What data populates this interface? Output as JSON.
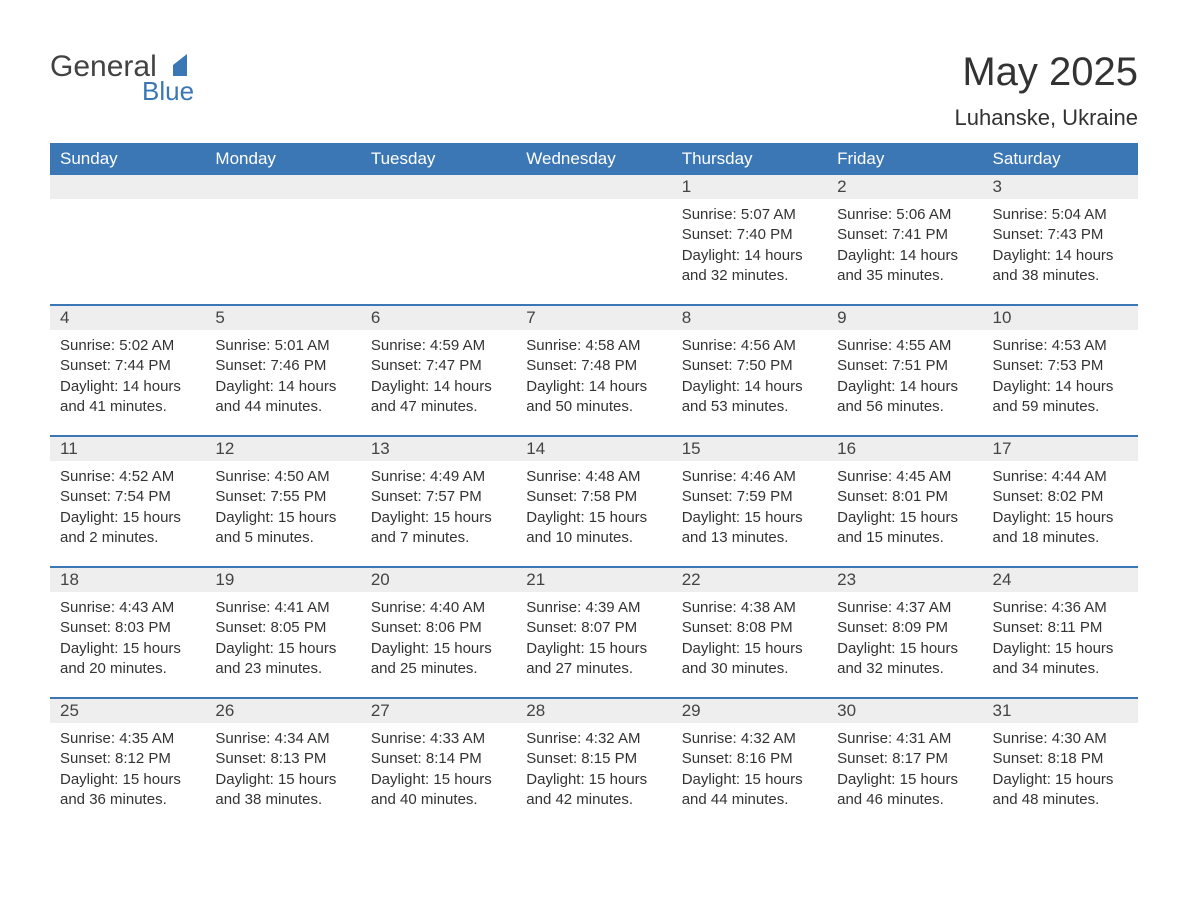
{
  "logo": {
    "text1": "General",
    "text2": "Blue",
    "iconColor": "#3b76b5",
    "text1Color": "#424242"
  },
  "title": "May 2025",
  "location": "Luhanske, Ukraine",
  "colors": {
    "headerBg": "#3b76b5",
    "headerText": "#ffffff",
    "dayStripBg": "#eeeeee",
    "rowBorder": "#3b76b5",
    "bodyText": "#333333"
  },
  "dayHeaders": [
    "Sunday",
    "Monday",
    "Tuesday",
    "Wednesday",
    "Thursday",
    "Friday",
    "Saturday"
  ],
  "weeks": [
    [
      null,
      null,
      null,
      null,
      {
        "n": "1",
        "sunrise": "5:07 AM",
        "sunset": "7:40 PM",
        "daylight": "14 hours and 32 minutes."
      },
      {
        "n": "2",
        "sunrise": "5:06 AM",
        "sunset": "7:41 PM",
        "daylight": "14 hours and 35 minutes."
      },
      {
        "n": "3",
        "sunrise": "5:04 AM",
        "sunset": "7:43 PM",
        "daylight": "14 hours and 38 minutes."
      }
    ],
    [
      {
        "n": "4",
        "sunrise": "5:02 AM",
        "sunset": "7:44 PM",
        "daylight": "14 hours and 41 minutes."
      },
      {
        "n": "5",
        "sunrise": "5:01 AM",
        "sunset": "7:46 PM",
        "daylight": "14 hours and 44 minutes."
      },
      {
        "n": "6",
        "sunrise": "4:59 AM",
        "sunset": "7:47 PM",
        "daylight": "14 hours and 47 minutes."
      },
      {
        "n": "7",
        "sunrise": "4:58 AM",
        "sunset": "7:48 PM",
        "daylight": "14 hours and 50 minutes."
      },
      {
        "n": "8",
        "sunrise": "4:56 AM",
        "sunset": "7:50 PM",
        "daylight": "14 hours and 53 minutes."
      },
      {
        "n": "9",
        "sunrise": "4:55 AM",
        "sunset": "7:51 PM",
        "daylight": "14 hours and 56 minutes."
      },
      {
        "n": "10",
        "sunrise": "4:53 AM",
        "sunset": "7:53 PM",
        "daylight": "14 hours and 59 minutes."
      }
    ],
    [
      {
        "n": "11",
        "sunrise": "4:52 AM",
        "sunset": "7:54 PM",
        "daylight": "15 hours and 2 minutes."
      },
      {
        "n": "12",
        "sunrise": "4:50 AM",
        "sunset": "7:55 PM",
        "daylight": "15 hours and 5 minutes."
      },
      {
        "n": "13",
        "sunrise": "4:49 AM",
        "sunset": "7:57 PM",
        "daylight": "15 hours and 7 minutes."
      },
      {
        "n": "14",
        "sunrise": "4:48 AM",
        "sunset": "7:58 PM",
        "daylight": "15 hours and 10 minutes."
      },
      {
        "n": "15",
        "sunrise": "4:46 AM",
        "sunset": "7:59 PM",
        "daylight": "15 hours and 13 minutes."
      },
      {
        "n": "16",
        "sunrise": "4:45 AM",
        "sunset": "8:01 PM",
        "daylight": "15 hours and 15 minutes."
      },
      {
        "n": "17",
        "sunrise": "4:44 AM",
        "sunset": "8:02 PM",
        "daylight": "15 hours and 18 minutes."
      }
    ],
    [
      {
        "n": "18",
        "sunrise": "4:43 AM",
        "sunset": "8:03 PM",
        "daylight": "15 hours and 20 minutes."
      },
      {
        "n": "19",
        "sunrise": "4:41 AM",
        "sunset": "8:05 PM",
        "daylight": "15 hours and 23 minutes."
      },
      {
        "n": "20",
        "sunrise": "4:40 AM",
        "sunset": "8:06 PM",
        "daylight": "15 hours and 25 minutes."
      },
      {
        "n": "21",
        "sunrise": "4:39 AM",
        "sunset": "8:07 PM",
        "daylight": "15 hours and 27 minutes."
      },
      {
        "n": "22",
        "sunrise": "4:38 AM",
        "sunset": "8:08 PM",
        "daylight": "15 hours and 30 minutes."
      },
      {
        "n": "23",
        "sunrise": "4:37 AM",
        "sunset": "8:09 PM",
        "daylight": "15 hours and 32 minutes."
      },
      {
        "n": "24",
        "sunrise": "4:36 AM",
        "sunset": "8:11 PM",
        "daylight": "15 hours and 34 minutes."
      }
    ],
    [
      {
        "n": "25",
        "sunrise": "4:35 AM",
        "sunset": "8:12 PM",
        "daylight": "15 hours and 36 minutes."
      },
      {
        "n": "26",
        "sunrise": "4:34 AM",
        "sunset": "8:13 PM",
        "daylight": "15 hours and 38 minutes."
      },
      {
        "n": "27",
        "sunrise": "4:33 AM",
        "sunset": "8:14 PM",
        "daylight": "15 hours and 40 minutes."
      },
      {
        "n": "28",
        "sunrise": "4:32 AM",
        "sunset": "8:15 PM",
        "daylight": "15 hours and 42 minutes."
      },
      {
        "n": "29",
        "sunrise": "4:32 AM",
        "sunset": "8:16 PM",
        "daylight": "15 hours and 44 minutes."
      },
      {
        "n": "30",
        "sunrise": "4:31 AM",
        "sunset": "8:17 PM",
        "daylight": "15 hours and 46 minutes."
      },
      {
        "n": "31",
        "sunrise": "4:30 AM",
        "sunset": "8:18 PM",
        "daylight": "15 hours and 48 minutes."
      }
    ]
  ],
  "labels": {
    "sunrise": "Sunrise: ",
    "sunset": "Sunset: ",
    "daylight": "Daylight: "
  }
}
